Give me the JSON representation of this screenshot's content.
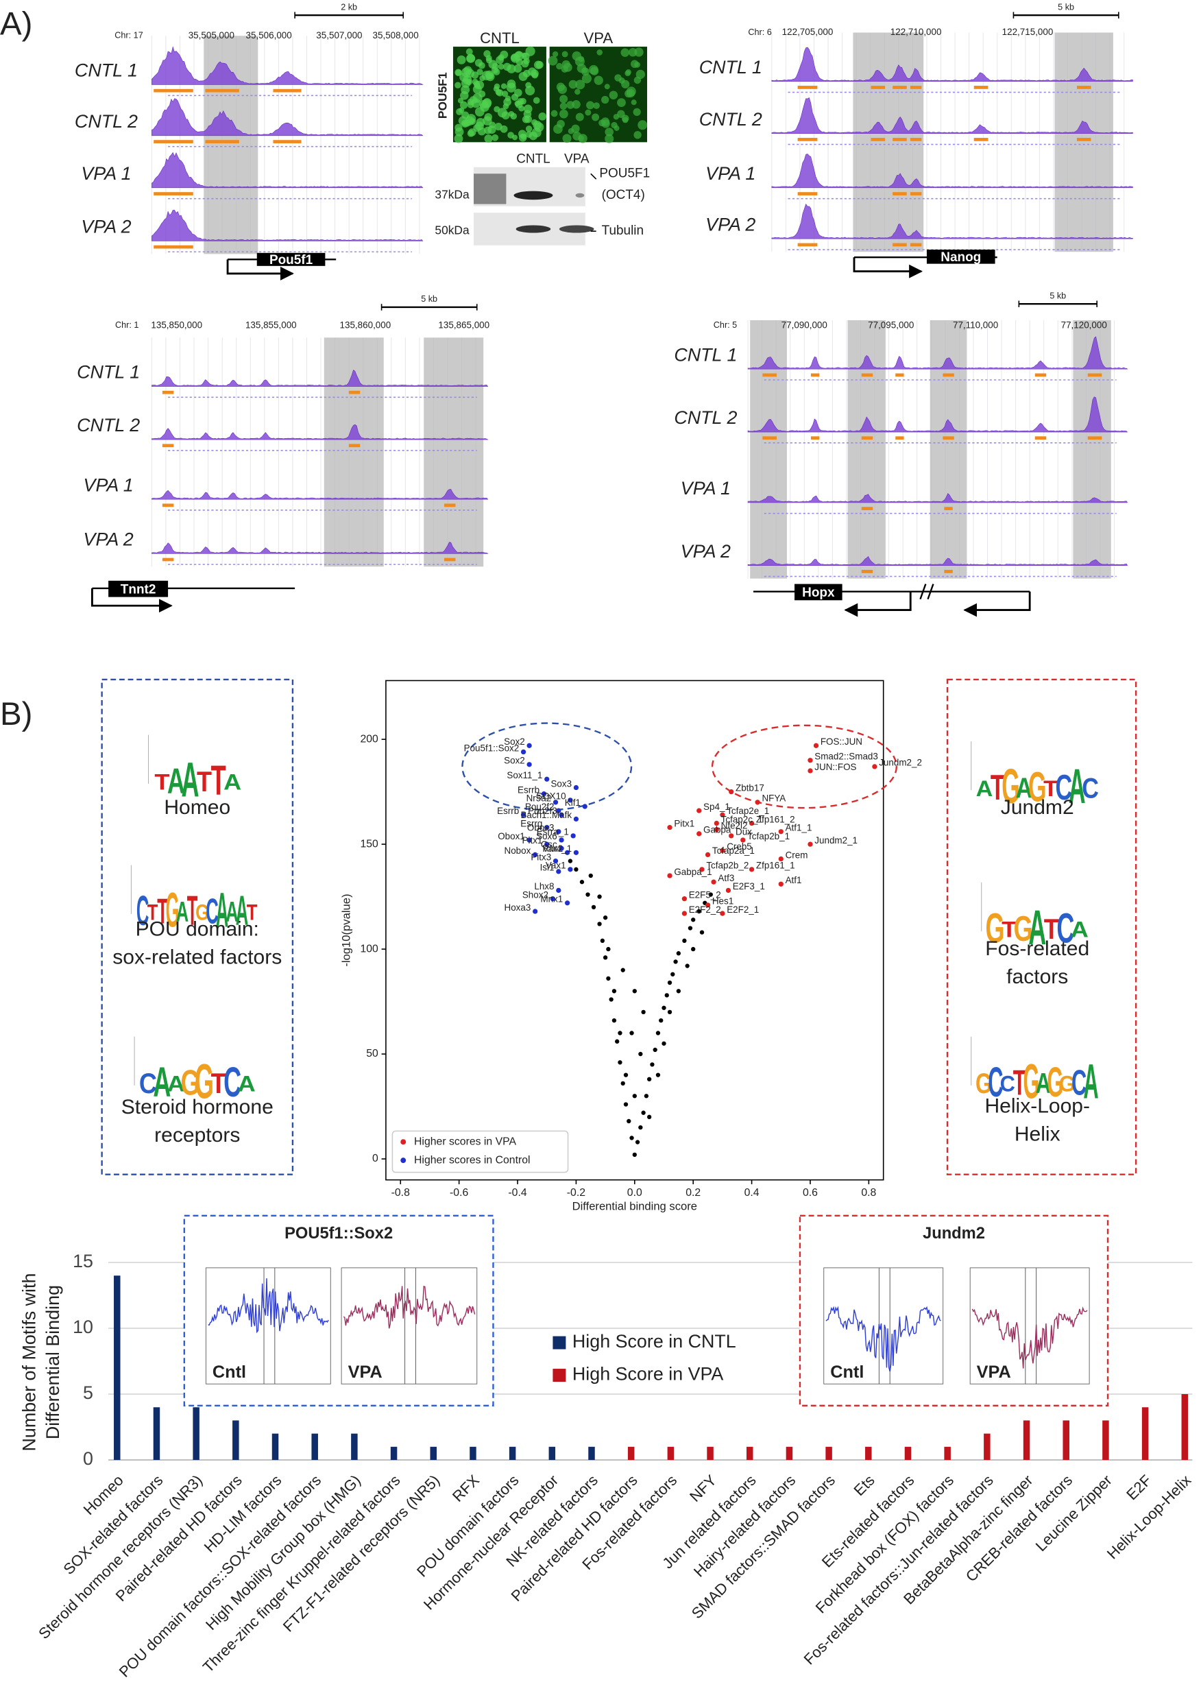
{
  "panel_labels": [
    "A)",
    "B)"
  ],
  "tracks": [
    {
      "chr": "Chr: 17",
      "coordinates": [
        "35,505,000",
        "35,506,000",
        "35,507,000",
        "35,508,000"
      ],
      "scale_bar": "2 kb",
      "samples": [
        "CNTL 1",
        "CNTL 2",
        "VPA 1",
        "VPA 2"
      ],
      "gene": "Pou5f1"
    },
    {
      "chr": "Chr: 6",
      "coordinates": [
        "122,705,000",
        "122,710,000",
        "122,715,000"
      ],
      "scale_bar": "5 kb",
      "samples": [
        "CNTL 1",
        "CNTL 2",
        "VPA 1",
        "VPA 2"
      ],
      "gene": "Nanog"
    },
    {
      "chr": "Chr: 1",
      "coordinates": [
        "135,850,000",
        "135,855,000",
        "135,860,000",
        "135,865,000"
      ],
      "scale_bar": "5 kb",
      "samples": [
        "CNTL 1",
        "CNTL 2",
        "VPA 1",
        "VPA 2"
      ],
      "gene": "Tnnt2"
    },
    {
      "chr": "Chr: 5",
      "coordinates": [
        "77,090,000",
        "77,095,000",
        "77,110,000",
        "77,120,000"
      ],
      "scale_bar": "5 kb",
      "samples": [
        "CNTL 1",
        "CNTL 2",
        "VPA 1",
        "VPA 2"
      ],
      "gene": "Hopx"
    }
  ],
  "immunofluorescence": {
    "conditions": [
      "CNTL",
      "VPA"
    ],
    "stain": "POU5F1"
  },
  "western_blot": {
    "lanes": [
      "CNTL",
      "VPA"
    ],
    "markers": [
      "37kDa",
      "50kDa"
    ],
    "bands": [
      "POU5F1",
      "(OCT4)",
      "Tubulin"
    ]
  },
  "motif_groups": {
    "control": [
      {
        "logo": [
          "T",
          "A",
          "A",
          "T",
          "T",
          "A"
        ],
        "label_lines": [
          "Homeo"
        ]
      },
      {
        "logo": [
          "C",
          "T",
          "T",
          "G",
          "A",
          "T",
          "G",
          "C",
          "A",
          "A",
          "A",
          "T"
        ],
        "label_lines": [
          "POU domain:",
          "sox-related factors"
        ]
      },
      {
        "logo": [
          "C",
          "A",
          "A",
          "G",
          "G",
          "T",
          "C",
          "A"
        ],
        "label_lines": [
          "Steroid hormone",
          "receptors"
        ]
      }
    ],
    "vpa": [
      {
        "logo": [
          "A",
          "T",
          "G",
          "A",
          "G",
          "T",
          "C",
          "A",
          "C"
        ],
        "label_lines": [
          "Jundm2"
        ]
      },
      {
        "logo": [
          "G",
          "T",
          "G",
          "A",
          "T",
          "C",
          "A"
        ],
        "label_lines": [
          "Fos-related",
          "factors"
        ]
      },
      {
        "logo": [
          "G",
          "C",
          "C",
          "T",
          "G",
          "A",
          "G",
          "G",
          "C",
          "A"
        ],
        "label_lines": [
          "Helix-Loop-",
          "Helix"
        ]
      }
    ]
  },
  "aggregated_signal_insets": [
    {
      "title": "POU5f1::Sox2",
      "panels": [
        "Cntl",
        "VPA"
      ],
      "color": "#2b5fd9"
    },
    {
      "title": "Jundm2",
      "panels": [
        "Cntl",
        "VPA"
      ],
      "color": "#d92b2b"
    }
  ],
  "chart_data": [
    {
      "type": "scatter",
      "xlabel": "Differential binding score",
      "ylabel": "-log10(pvalue)",
      "xlim": [
        -0.85,
        0.85
      ],
      "ylim": [
        -10,
        228
      ],
      "xticks": [
        -0.8,
        -0.6,
        -0.4,
        -0.2,
        {
          "value": 0,
          "label": "0.0"
        },
        0.2,
        0.4,
        0.6,
        0.8
      ],
      "yticks": [
        0,
        50,
        100,
        150,
        200
      ],
      "legend": "lower left",
      "series": [
        {
          "name": "Higher scores in VPA",
          "color": "#e02020",
          "x": [
            0.62,
            0.6,
            0.82,
            0.6,
            0.33,
            0.42,
            0.22,
            0.3,
            0.4,
            0.28,
            0.12,
            0.28,
            0.5,
            0.22,
            0.33,
            0.37,
            0.6,
            0.3,
            0.25,
            0.5,
            0.4,
            0.23,
            0.12,
            0.27,
            0.5,
            0.32,
            0.17,
            0.25,
            0.17,
            0.3
          ],
          "values": [
            197,
            190,
            187,
            185,
            175,
            170,
            166,
            164,
            160,
            160,
            158,
            157,
            156,
            155,
            154,
            152,
            150,
            147,
            145,
            143,
            138,
            138,
            135,
            132,
            131,
            128,
            124,
            121,
            117,
            117
          ],
          "point_labels": [
            "FOS::JUN",
            "Smad2::Smad3",
            "Jundm2_2",
            "JUN::FOS",
            "Zbtb17",
            "NFYA",
            "Sp4_1",
            "Tcfap2e_1",
            "Zfp161_2",
            "Tcfap2c_1",
            "Pitx1",
            "Nfe2l2",
            "Atf1_1",
            "Gabpa",
            "Dux",
            "Tcfap2b_1",
            "Jundm2_1",
            "Creb5",
            "Tcfap2a_1",
            "Crem",
            "Zfp161_1",
            "Tcfap2b_2",
            "Gabpa_1",
            "Atf3",
            "Atf1",
            "E2F3_1",
            "E2F5_2",
            "Hes1",
            "E2F2_2",
            "E2F2_1"
          ]
        },
        {
          "name": "Higher scores in Control",
          "color": "#2030d0",
          "x": [
            -0.38,
            -0.36,
            -0.36,
            -0.3,
            -0.31,
            -0.27,
            -0.2,
            -0.22,
            -0.17,
            -0.26,
            -0.25,
            -0.38,
            -0.2,
            -0.3,
            -0.26,
            -0.25,
            -0.36,
            -0.3,
            -0.21,
            -0.25,
            -0.23,
            -0.2,
            -0.34,
            -0.27,
            -0.22,
            -0.26,
            -0.26,
            -0.28,
            -0.23,
            -0.34
          ],
          "values": [
            194,
            197,
            188,
            181,
            174,
            170,
            177,
            171,
            168,
            166,
            164,
            164,
            162,
            158,
            156,
            152,
            152,
            150,
            154,
            148,
            146,
            146,
            145,
            142,
            138,
            137,
            128,
            124,
            122,
            118
          ],
          "point_labels": [
            "Pou5f1::Sox2",
            "Sox2",
            "Sox2",
            "Sox11_1",
            "Esrrb",
            "Nr5a2",
            "Sox3",
            "SOX10",
            "Klf1",
            "Pou2f2",
            "Pou2f3",
            "Esrrb",
            "Bach1::Mafk",
            "Esrrg",
            "Obox3",
            "Sox6",
            "Obox1",
            "Pitx1",
            "Esrra_1",
            "Gsc",
            "Vax2",
            "Rfx4_1",
            "Nobox",
            "Pitx3",
            "Vax1",
            "Isl1",
            "Lhx8",
            "Shox2",
            "Mnx1",
            "Hoxa3"
          ]
        }
      ],
      "background_points": {
        "color": "#000000",
        "x": [
          0,
          0.01,
          0.02,
          0.03,
          0.04,
          0.05,
          0.06,
          0.07,
          0.08,
          0.09,
          0.1,
          0.11,
          0.12,
          0.13,
          0.14,
          0.15,
          0.17,
          0.19,
          0.2,
          0.22,
          0.24,
          0.26,
          0.12,
          0.15,
          0.18,
          0.08,
          0.1,
          0.05,
          0.2,
          0.23,
          -0.01,
          -0.02,
          -0.03,
          -0.04,
          -0.05,
          -0.06,
          -0.07,
          -0.08,
          -0.09,
          -0.1,
          -0.11,
          -0.12,
          -0.14,
          -0.16,
          -0.18,
          -0.2,
          -0.22,
          -0.03,
          -0.05,
          -0.07,
          -0.09,
          -0.1,
          -0.12,
          -0.15,
          0,
          0.02,
          -0.01,
          0,
          -0.04,
          0.03
        ],
        "values": [
          2,
          8,
          15,
          22,
          30,
          38,
          45,
          52,
          60,
          66,
          72,
          78,
          84,
          88,
          94,
          98,
          104,
          110,
          114,
          118,
          122,
          126,
          70,
          80,
          92,
          40,
          55,
          20,
          100,
          108,
          10,
          18,
          26,
          36,
          46,
          56,
          66,
          76,
          86,
          96,
          104,
          112,
          120,
          126,
          132,
          138,
          142,
          40,
          60,
          80,
          100,
          115,
          125,
          135,
          30,
          50,
          60,
          80,
          90,
          70
        ]
      }
    },
    {
      "type": "bar",
      "ylabel_lines": [
        "Number of Motifs with",
        "Differential Binding"
      ],
      "categories": [
        "Homeo",
        "SOX-related factors",
        "Steroid hormone receptors (NR3)",
        "Paired-related HD factors",
        "HD-LIM factors",
        "POU domain factors::SOX-related factors",
        "High Mobility Group box (HMG)",
        "Three-zinc finger Kruppel-related factors",
        "FTZ-F1-related receptors (NR5)",
        "RFX",
        "POU domain factors",
        "Hormone-nuclear Receptor",
        "NK-related factors",
        "Paired-related HD factors",
        "Fos-related factors",
        "NFY",
        "Jun related factors",
        "Hairy-related factors",
        "SMAD factors::SMAD factors",
        "Ets",
        "Ets-related factors",
        "Forkhead box (FOX) factors",
        "Fos-related factors::Jun-related factors",
        "BetaBetaAlpha-zinc finger",
        "CREB-related factors",
        "Leucine Zipper",
        "E2F",
        "Helix-Loop-Helix"
      ],
      "series": [
        {
          "name": "High Score in CNTL",
          "color": "#0f2d69",
          "values": [
            14,
            4,
            4,
            3,
            2,
            2,
            2,
            1,
            1,
            1,
            1,
            1,
            1,
            null,
            null,
            null,
            null,
            null,
            null,
            null,
            null,
            null,
            null,
            null,
            null,
            null,
            null,
            null
          ]
        },
        {
          "name": "High Score in VPA",
          "color": "#c0141c",
          "values": [
            null,
            null,
            null,
            null,
            null,
            null,
            null,
            null,
            null,
            null,
            null,
            null,
            null,
            1,
            1,
            1,
            1,
            1,
            1,
            1,
            1,
            1,
            2,
            3,
            3,
            3,
            4,
            5
          ]
        }
      ],
      "ylim": [
        0,
        16
      ],
      "yticks": [
        0,
        5,
        10,
        15
      ],
      "grid": true,
      "legend": "center"
    }
  ]
}
